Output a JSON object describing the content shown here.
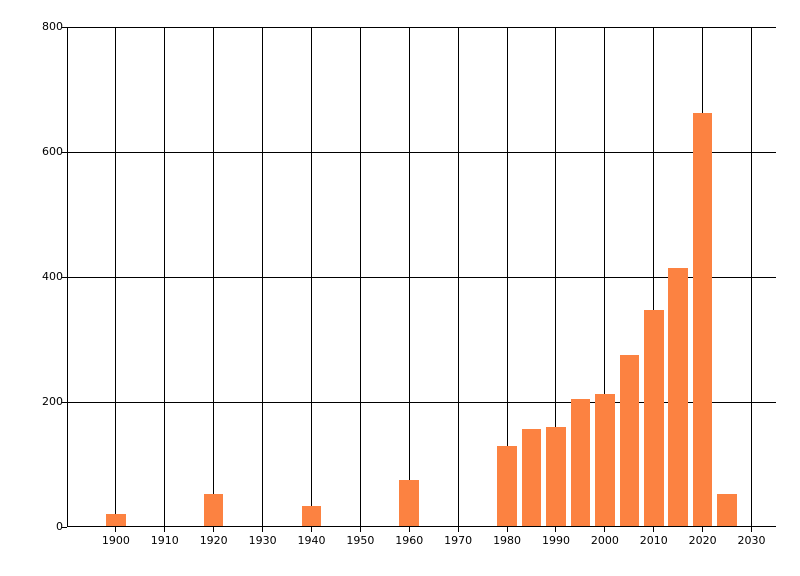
{
  "chart_data": {
    "type": "bar",
    "title": "",
    "xlabel": "",
    "ylabel": "",
    "x": [
      1900,
      1920,
      1940,
      1960,
      1980,
      1985,
      1990,
      1995,
      2000,
      2005,
      2010,
      2015,
      2020,
      2025
    ],
    "values": [
      21,
      53,
      34,
      76,
      130,
      157,
      160,
      205,
      213,
      275,
      348,
      414,
      662,
      53
    ],
    "series_name": "",
    "bar_color": "#fc8241",
    "bar_width_years": 4,
    "xlim": [
      1890,
      2035
    ],
    "ylim": [
      0,
      800
    ],
    "x_ticks": [
      1900,
      1910,
      1920,
      1930,
      1940,
      1950,
      1960,
      1970,
      1980,
      1990,
      2000,
      2010,
      2020,
      2030
    ],
    "y_ticks": [
      0,
      200,
      400,
      600,
      800
    ],
    "grid": "both",
    "grid_color": "#000000",
    "axis_color": "#000000",
    "legend_position": "none",
    "background_color": "#ffffff"
  }
}
